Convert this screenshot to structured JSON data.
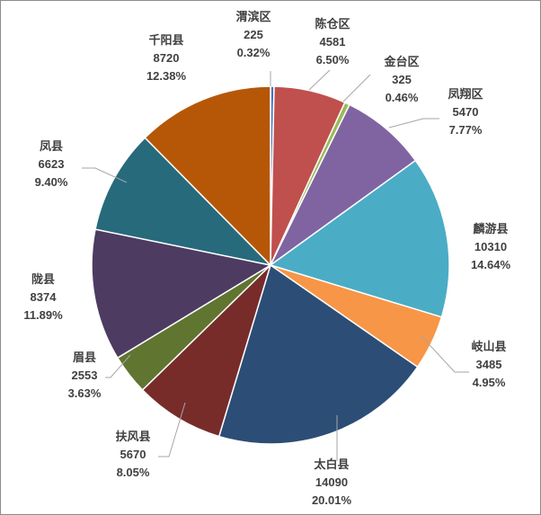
{
  "chart_data": {
    "type": "pie",
    "title": "",
    "slices": [
      {
        "name": "渭滨区",
        "value": 225,
        "percent": "0.32%",
        "color": "#4472c4"
      },
      {
        "name": "陈仓区",
        "value": 4581,
        "percent": "6.50%",
        "color": "#c0504d"
      },
      {
        "name": "金台区",
        "value": 325,
        "percent": "0.46%",
        "color": "#9bbb59"
      },
      {
        "name": "凤翔区",
        "value": 5470,
        "percent": "7.77%",
        "color": "#8064a2"
      },
      {
        "name": "麟游县",
        "value": 10310,
        "percent": "14.64%",
        "color": "#4bacc6"
      },
      {
        "name": "岐山县",
        "value": 3485,
        "percent": "4.95%",
        "color": "#f79646"
      },
      {
        "name": "太白县",
        "value": 14090,
        "percent": "20.01%",
        "color": "#2c4d75"
      },
      {
        "name": "扶风县",
        "value": 5670,
        "percent": "8.05%",
        "color": "#772c2a"
      },
      {
        "name": "眉县",
        "value": 2553,
        "percent": "3.63%",
        "color": "#5f7530"
      },
      {
        "name": "陇县",
        "value": 8374,
        "percent": "11.89%",
        "color": "#4d3b62"
      },
      {
        "name": "凤县",
        "value": 6623,
        "percent": "9.40%",
        "color": "#276a7c"
      },
      {
        "name": "千阳县",
        "value": 8720,
        "percent": "12.38%",
        "color": "#b65708"
      }
    ]
  }
}
